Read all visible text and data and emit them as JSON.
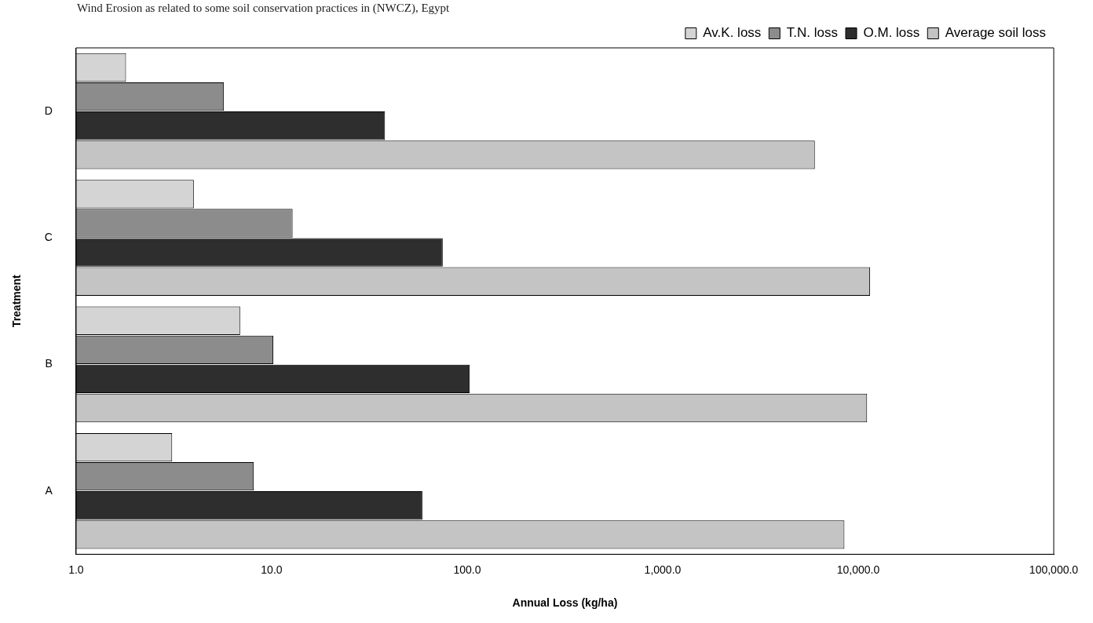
{
  "chart_data": {
    "type": "bar",
    "orientation": "horizontal",
    "title": "Wind Erosion as related to some soil conservation practices in (NWCZ), Egypt",
    "xlabel": "Annual Loss (kg/ha)",
    "ylabel": "Treatment",
    "categories": [
      "D",
      "C",
      "B",
      "A"
    ],
    "series": [
      {
        "name": "Av.K. loss",
        "color": "#d4d4d4",
        "values": [
          1.8,
          4.0,
          6.9,
          3.1
        ]
      },
      {
        "name": "T.N. loss",
        "color": "#8c8c8c",
        "values": [
          5.7,
          12.8,
          10.2,
          8.1
        ]
      },
      {
        "name": "O.M. loss",
        "color": "#2e2e2e",
        "values": [
          38,
          75,
          103,
          59
        ]
      },
      {
        "name": "Average soil loss",
        "color": "#c4c4c4",
        "values": [
          6000,
          11500,
          11100,
          8500
        ]
      }
    ],
    "log": "x",
    "xlim": [
      1,
      100000
    ],
    "xticks": [
      {
        "value": 1,
        "label": "1.0"
      },
      {
        "value": 10,
        "label": "10.0"
      },
      {
        "value": 100,
        "label": "100.0"
      },
      {
        "value": 1000,
        "label": "1,000.0"
      },
      {
        "value": 10000,
        "label": "10,000.0"
      },
      {
        "value": 100000,
        "label": "100,000.0"
      }
    ],
    "grid": false,
    "legend": "top right"
  }
}
